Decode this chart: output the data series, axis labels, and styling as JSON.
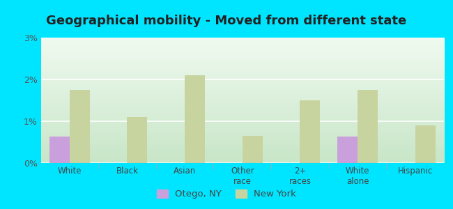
{
  "title": "Geographical mobility - Moved from different state",
  "categories": [
    "White",
    "Black",
    "Asian",
    "Other\nrace",
    "2+\nraces",
    "White\nalone",
    "Hispanic"
  ],
  "otego_values": [
    0.63,
    0.0,
    0.0,
    0.0,
    0.0,
    0.63,
    0.0
  ],
  "newyork_values": [
    1.75,
    1.1,
    2.1,
    0.65,
    1.5,
    1.75,
    0.9
  ],
  "otego_color": "#c9a0dc",
  "newyork_color": "#c8d4a0",
  "bar_width": 0.35,
  "ylim": [
    0,
    3.0
  ],
  "yticks": [
    0,
    1,
    2,
    3
  ],
  "ytick_labels": [
    "0%",
    "1%",
    "2%",
    "3%"
  ],
  "title_fontsize": 13,
  "legend_labels": [
    "Otego, NY",
    "New York"
  ],
  "outer_bg": "#00e5ff",
  "grad_top": "#c8e6c8",
  "grad_bottom": "#f0faf0"
}
